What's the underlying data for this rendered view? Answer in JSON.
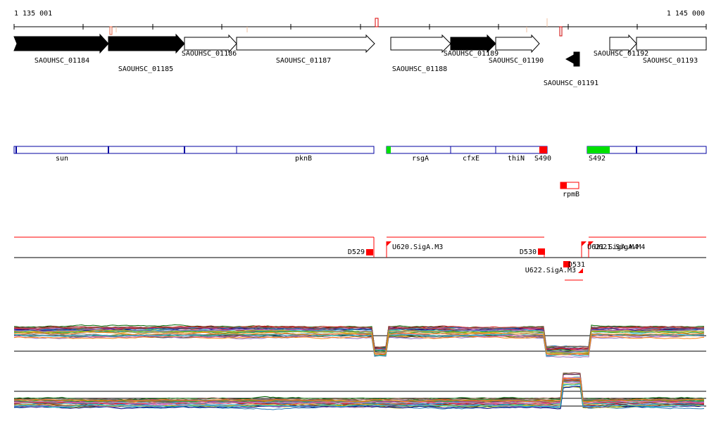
{
  "coords": {
    "start": "1 135 001",
    "end": "1 145 000"
  },
  "genes": [
    {
      "label": "SAOUHSC_01184",
      "strand": "+",
      "filled": true
    },
    {
      "label": "SAOUHSC_01185",
      "strand": "+",
      "filled": true
    },
    {
      "label": "SAOUHSC_01186",
      "strand": "+",
      "filled": false
    },
    {
      "label": "SAOUHSC_01187",
      "strand": "+",
      "filled": false
    },
    {
      "label": "SAOUHSC_01188",
      "strand": "+",
      "filled": false
    },
    {
      "label": "SAOUHSC_01189",
      "strand": "+",
      "filled": true
    },
    {
      "label": "SAOUHSC_01190",
      "strand": "+",
      "filled": false
    },
    {
      "label": "SAOUHSC_01191",
      "strand": "-",
      "filled": true
    },
    {
      "label": "SAOUHSC_01192",
      "strand": "+",
      "filled": false
    },
    {
      "label": "SAOUHSC_01193",
      "strand": "+",
      "filled": false
    }
  ],
  "annotations": [
    "sun",
    "pknB",
    "rsgA",
    "cfxE",
    "thiN",
    "S490",
    "S492",
    "rpmB"
  ],
  "segments": [
    "D529",
    "U620.SigA.M3",
    "D530",
    "D531",
    "U622.SigA.M3",
    "U621.SigA.M4",
    "U621.SigA.M4"
  ],
  "colors": {
    "red": "#ff0000",
    "green": "#00e000",
    "blue": "#0000a0",
    "black": "#000000"
  }
}
